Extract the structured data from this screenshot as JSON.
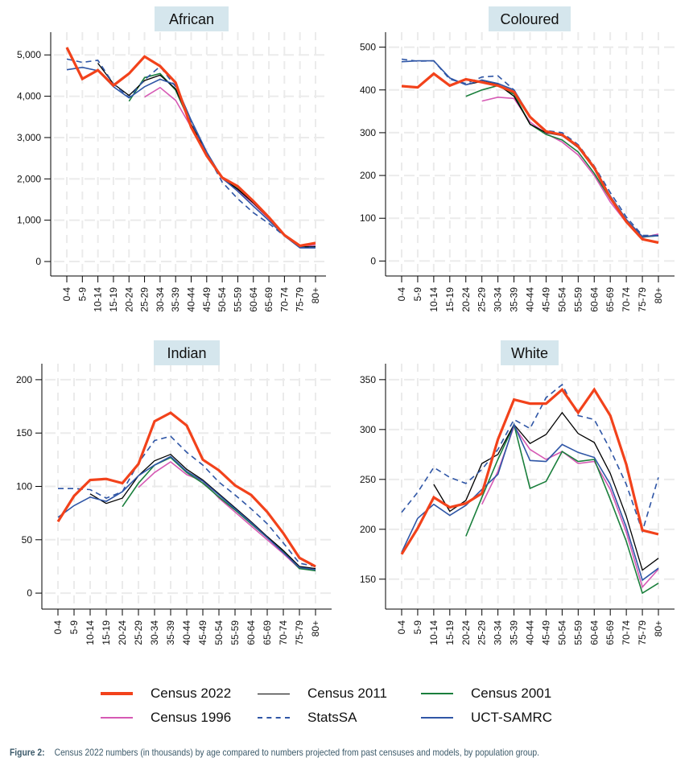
{
  "chart_data": [
    {
      "type": "line",
      "title": "African",
      "xlabel": "",
      "ylabel": "",
      "categories": [
        "0-4",
        "5-9",
        "10-14",
        "15-19",
        "20-24",
        "25-29",
        "30-34",
        "35-39",
        "40-44",
        "45-49",
        "50-54",
        "55-59",
        "60-64",
        "65-69",
        "70-74",
        "75-79",
        "80+"
      ],
      "yticks": [
        0,
        1000,
        2000,
        3000,
        4000,
        5000
      ],
      "ytick_labels": [
        "0",
        "1,000",
        "2,000",
        "3,000",
        "4,000",
        "5,000"
      ],
      "ylim": [
        -350,
        5550
      ],
      "grid": true,
      "series": [
        {
          "name": "Census 1996",
          "values": [
            null,
            null,
            null,
            null,
            null,
            3980,
            4210,
            3900,
            3250,
            2600,
            2010,
            1720,
            1400,
            1030,
            640,
            360,
            400
          ]
        },
        {
          "name": "Census 2001",
          "values": [
            null,
            null,
            null,
            null,
            3880,
            4450,
            4550,
            4150,
            3300,
            2620,
            2020,
            1760,
            1420,
            1050,
            650,
            350,
            360
          ]
        },
        {
          "name": "Census 2011",
          "values": [
            null,
            null,
            4800,
            4300,
            4020,
            4380,
            4510,
            4180,
            3320,
            2640,
            2020,
            1750,
            1420,
            1050,
            650,
            350,
            360
          ]
        },
        {
          "name": "StatsSA",
          "values": [
            4900,
            4820,
            4870,
            4300,
            3970,
            4400,
            4720,
            4230,
            3380,
            2610,
            1920,
            1520,
            1180,
            920,
            620,
            340,
            340
          ]
        },
        {
          "name": "UCT-SAMRC",
          "values": [
            4640,
            4700,
            4620,
            4230,
            3960,
            4230,
            4410,
            4280,
            3420,
            2650,
            2020,
            1700,
            1340,
            990,
            620,
            330,
            330
          ]
        },
        {
          "name": "Census 2022",
          "values": [
            5180,
            4420,
            4630,
            4260,
            4550,
            4960,
            4730,
            4330,
            3250,
            2560,
            2030,
            1820,
            1460,
            1070,
            640,
            380,
            450
          ]
        }
      ]
    },
    {
      "type": "line",
      "title": "Coloured",
      "xlabel": "",
      "ylabel": "",
      "categories": [
        "0-4",
        "5-9",
        "10-14",
        "15-19",
        "20-24",
        "25-29",
        "30-34",
        "35-39",
        "40-44",
        "45-49",
        "50-54",
        "55-59",
        "60-64",
        "65-69",
        "70-74",
        "75-79",
        "80+"
      ],
      "yticks": [
        0,
        100,
        200,
        300,
        400,
        500
      ],
      "ytick_labels": [
        "0",
        "100",
        "200",
        "300",
        "400",
        "500"
      ],
      "ylim": [
        -35,
        535
      ],
      "grid": true,
      "series": [
        {
          "name": "Census 1996",
          "values": [
            null,
            null,
            null,
            null,
            null,
            374,
            383,
            380,
            325,
            298,
            278,
            248,
            200,
            138,
            90,
            55,
            63
          ]
        },
        {
          "name": "Census 2001",
          "values": [
            null,
            null,
            null,
            null,
            385,
            400,
            410,
            390,
            320,
            296,
            283,
            255,
            205,
            145,
            94,
            56,
            59
          ]
        },
        {
          "name": "Census 2011",
          "values": [
            null,
            null,
            null,
            null,
            412,
            420,
            413,
            385,
            320,
            300,
            293,
            265,
            215,
            152,
            97,
            57,
            60
          ]
        },
        {
          "name": "StatsSA",
          "values": [
            472,
            467,
            468,
            425,
            415,
            430,
            433,
            400,
            338,
            305,
            300,
            272,
            222,
            160,
            103,
            60,
            60
          ]
        },
        {
          "name": "UCT-SAMRC",
          "values": [
            466,
            468,
            468,
            428,
            412,
            423,
            415,
            400,
            338,
            303,
            293,
            268,
            218,
            152,
            97,
            57,
            59
          ]
        },
        {
          "name": "Census 2022",
          "values": [
            409,
            406,
            438,
            410,
            425,
            418,
            410,
            395,
            337,
            303,
            295,
            268,
            218,
            148,
            92,
            51,
            43
          ]
        }
      ]
    },
    {
      "type": "line",
      "title": "Indian",
      "xlabel": "",
      "ylabel": "",
      "categories": [
        "0-4",
        "5-9",
        "10-14",
        "15-19",
        "20-24",
        "25-29",
        "30-34",
        "35-39",
        "40-44",
        "45-49",
        "50-54",
        "55-59",
        "60-64",
        "65-69",
        "70-74",
        "75-79",
        "80+"
      ],
      "yticks": [
        0,
        50,
        100,
        150,
        200
      ],
      "ytick_labels": [
        "0",
        "50",
        "100",
        "150",
        "200"
      ],
      "ylim": [
        -15,
        215
      ],
      "grid": true,
      "series": [
        {
          "name": "Census 1996",
          "values": [
            null,
            null,
            null,
            null,
            null,
            99,
            113,
            123,
            111,
            105,
            89,
            76,
            63,
            50,
            37,
            23,
            22
          ]
        },
        {
          "name": "Census 2001",
          "values": [
            null,
            null,
            null,
            null,
            81,
            103,
            120,
            127,
            113,
            103,
            90,
            78,
            65,
            52,
            39,
            23,
            21
          ]
        },
        {
          "name": "Census 2011",
          "values": [
            null,
            null,
            93,
            84,
            89,
            110,
            124,
            130,
            116,
            106,
            93,
            80,
            67,
            53,
            40,
            25,
            23
          ]
        },
        {
          "name": "StatsSA",
          "values": [
            98,
            98,
            97,
            89,
            95,
            122,
            143,
            147,
            132,
            120,
            104,
            92,
            79,
            65,
            47,
            28,
            25
          ]
        },
        {
          "name": "UCT-SAMRC",
          "values": [
            71,
            82,
            90,
            86,
            95,
            110,
            120,
            128,
            114,
            105,
            92,
            79,
            66,
            52,
            38,
            24,
            22
          ]
        },
        {
          "name": "Census 2022",
          "values": [
            67,
            91,
            106,
            107,
            103,
            121,
            161,
            169,
            157,
            125,
            115,
            101,
            92,
            76,
            56,
            33,
            25
          ]
        }
      ]
    },
    {
      "type": "line",
      "title": "White",
      "xlabel": "",
      "ylabel": "",
      "categories": [
        "0-4",
        "5-9",
        "10-14",
        "15-19",
        "20-24",
        "25-29",
        "30-34",
        "35-39",
        "40-44",
        "45-49",
        "50-54",
        "55-59",
        "60-64",
        "65-69",
        "70-74",
        "75-79",
        "80+"
      ],
      "yticks": [
        150,
        200,
        250,
        300,
        350
      ],
      "ytick_labels": [
        "150",
        "200",
        "250",
        "300",
        "350"
      ],
      "ylim": [
        120,
        366
      ],
      "grid": true,
      "series": [
        {
          "name": "Census 1996",
          "values": [
            null,
            null,
            null,
            null,
            null,
            225,
            258,
            303,
            280,
            270,
            278,
            266,
            268,
            240,
            197,
            142,
            160
          ]
        },
        {
          "name": "Census 2001",
          "values": [
            null,
            null,
            null,
            null,
            193,
            232,
            270,
            305,
            241,
            248,
            278,
            268,
            270,
            230,
            188,
            136,
            146
          ]
        },
        {
          "name": "Census 2011",
          "values": [
            null,
            null,
            245,
            218,
            229,
            266,
            275,
            305,
            286,
            295,
            317,
            296,
            287,
            256,
            213,
            159,
            171
          ]
        },
        {
          "name": "StatsSA",
          "values": [
            217,
            237,
            262,
            252,
            246,
            260,
            280,
            310,
            301,
            332,
            345,
            314,
            310,
            280,
            245,
            198,
            252
          ]
        },
        {
          "name": "UCT-SAMRC",
          "values": [
            177,
            211,
            225,
            214,
            224,
            240,
            255,
            305,
            269,
            268,
            285,
            277,
            272,
            245,
            202,
            149,
            161
          ]
        },
        {
          "name": "Census 2022",
          "values": [
            175,
            201,
            232,
            222,
            226,
            236,
            290,
            330,
            326,
            326,
            340,
            317,
            340,
            314,
            265,
            199,
            195
          ]
        }
      ]
    }
  ],
  "legend": [
    {
      "name": "Census 2022",
      "color": "#f2421b",
      "style": "solid",
      "weight": "thick"
    },
    {
      "name": "Census 2011",
      "color": "#000000",
      "style": "solid",
      "weight": "thin"
    },
    {
      "name": "Census 2001",
      "color": "#1a7f3c",
      "style": "solid",
      "weight": "thin"
    },
    {
      "name": "Census 1996",
      "color": "#d65ab4",
      "style": "solid",
      "weight": "thin"
    },
    {
      "name": "StatsSA",
      "color": "#2f56a6",
      "style": "dashed",
      "weight": "thin"
    },
    {
      "name": "UCT-SAMRC",
      "color": "#2f56a6",
      "style": "solid",
      "weight": "thin"
    }
  ],
  "caption": {
    "label": "Figure 2:",
    "text": "Census 2022 numbers (in thousands) by age compared to numbers projected from past censuses and models, by population group."
  },
  "colors": {
    "panel_title_bg": "#d5e6ed",
    "grid": "#ebebeb",
    "caption_text": "#3c5a6a"
  }
}
